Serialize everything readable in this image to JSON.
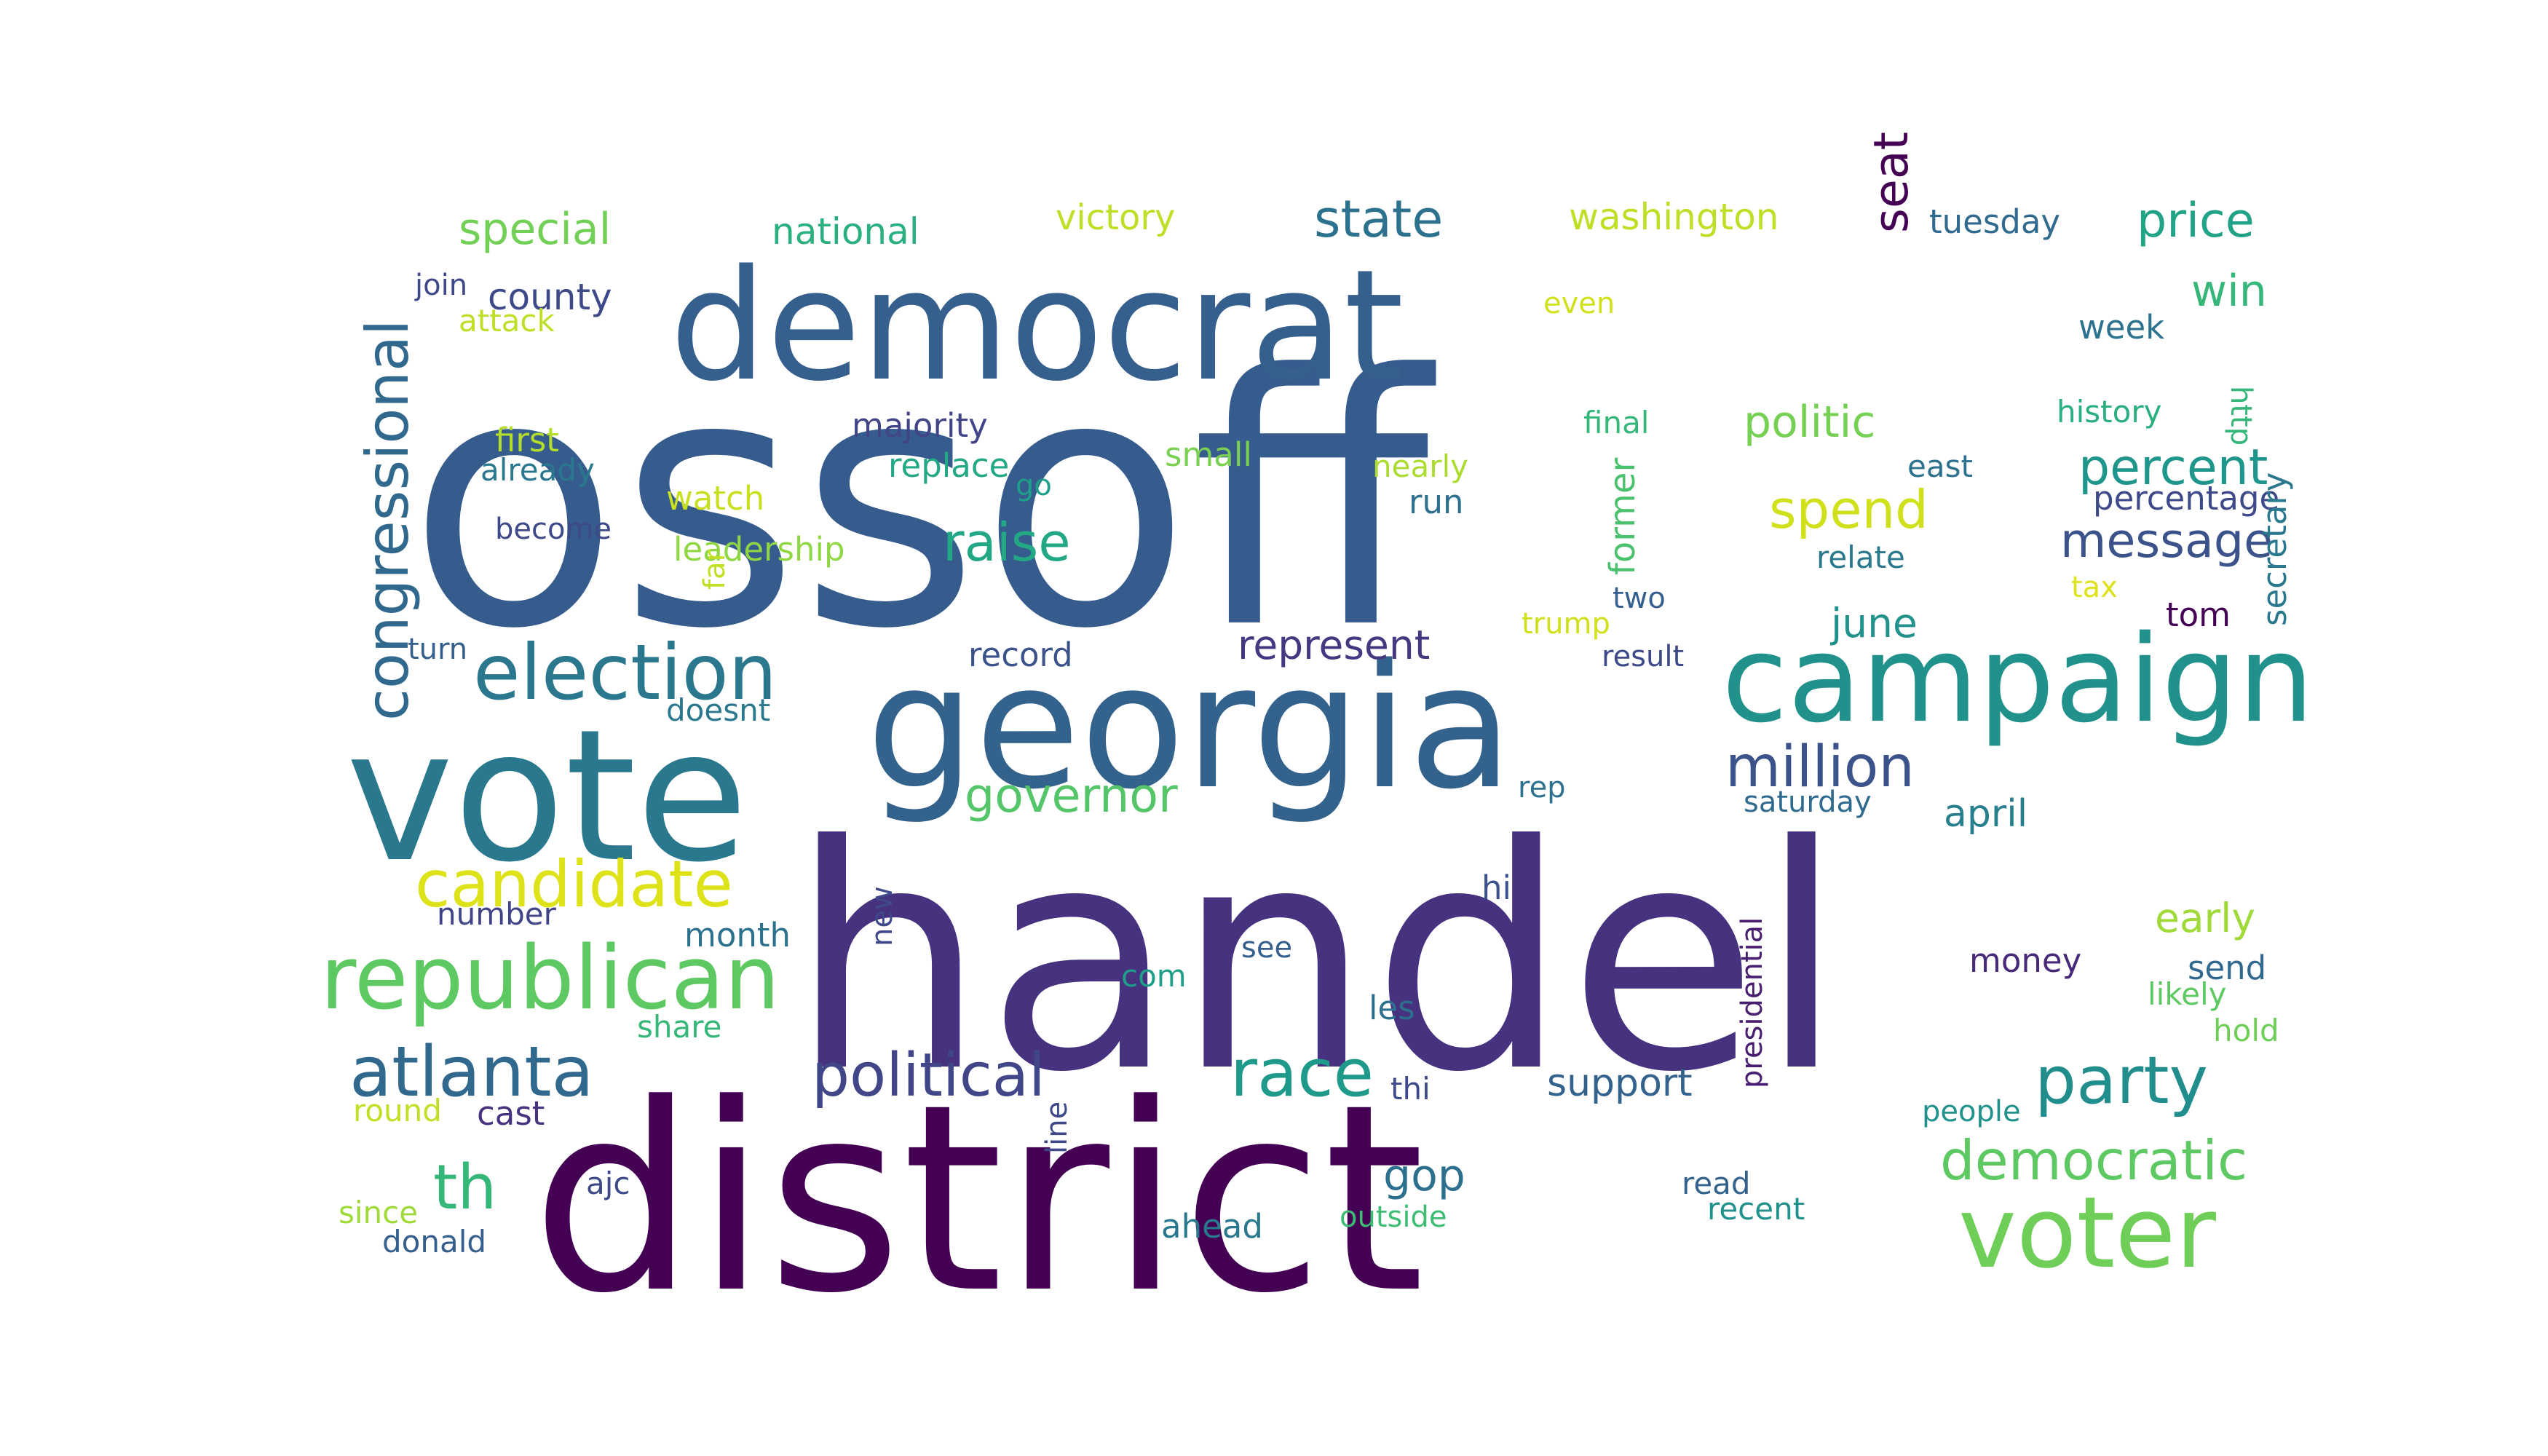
{
  "words": [
    {
      "text": "ossoff",
      "color": "#365c8d"
    },
    {
      "text": "handel",
      "color": "#46327e"
    },
    {
      "text": "district",
      "color": "#440154"
    },
    {
      "text": "georgia",
      "color": "#33638d"
    },
    {
      "text": "vote",
      "color": "#2a788e"
    },
    {
      "text": "democrat",
      "color": "#355f8d"
    },
    {
      "text": "campaign",
      "color": "#21918c"
    },
    {
      "text": "republican",
      "color": "#5ec962"
    },
    {
      "text": "voter",
      "color": "#6ece58"
    },
    {
      "text": "election",
      "color": "#2a778e"
    },
    {
      "text": "atlanta",
      "color": "#31688e"
    },
    {
      "text": "candidate",
      "color": "#dde318"
    },
    {
      "text": "party",
      "color": "#228d8d"
    },
    {
      "text": "political",
      "color": "#404688"
    },
    {
      "text": "race",
      "color": "#1f9a8a"
    },
    {
      "text": "million",
      "color": "#3b528b"
    },
    {
      "text": "congressional",
      "color": "#31688e"
    },
    {
      "text": "th",
      "color": "#35b779"
    },
    {
      "text": "democratic",
      "color": "#5ec962"
    },
    {
      "text": "raise",
      "color": "#22a884"
    },
    {
      "text": "state",
      "color": "#2c728e"
    },
    {
      "text": "special",
      "color": "#73d056"
    },
    {
      "text": "spend",
      "color": "#d0e11c"
    },
    {
      "text": "percent",
      "color": "#1f968b"
    },
    {
      "text": "message",
      "color": "#3b528b"
    },
    {
      "text": "governor",
      "color": "#54c568"
    },
    {
      "text": "seat",
      "color": "#440154"
    },
    {
      "text": "price",
      "color": "#20a386"
    },
    {
      "text": "politic",
      "color": "#75d054"
    },
    {
      "text": "win",
      "color": "#35b779"
    },
    {
      "text": "represent",
      "color": "#453781"
    },
    {
      "text": "gop",
      "color": "#2d708e"
    },
    {
      "text": "support",
      "color": "#33638d"
    },
    {
      "text": "washington",
      "color": "#bddf26"
    },
    {
      "text": "national",
      "color": "#2ab07f"
    },
    {
      "text": "victory",
      "color": "#bddf26"
    },
    {
      "text": "county",
      "color": "#3e4989"
    },
    {
      "text": "june",
      "color": "#21918c"
    },
    {
      "text": "early",
      "color": "#a0da39"
    },
    {
      "text": "april",
      "color": "#277f8e"
    },
    {
      "text": "majority",
      "color": "#414487"
    },
    {
      "text": "tuesday",
      "color": "#306a8e"
    },
    {
      "text": "replace",
      "color": "#22a884"
    },
    {
      "text": "small",
      "color": "#7ad151"
    },
    {
      "text": "nearly",
      "color": "#addc30"
    },
    {
      "text": "run",
      "color": "#2d708e"
    },
    {
      "text": "former",
      "color": "#4ac16d"
    },
    {
      "text": "record",
      "color": "#3b528b"
    },
    {
      "text": "week",
      "color": "#2c728e"
    },
    {
      "text": "history",
      "color": "#2ab07f"
    },
    {
      "text": "final",
      "color": "#35b779"
    },
    {
      "text": "east",
      "color": "#2c728e"
    },
    {
      "text": "percentage",
      "color": "#3e4989"
    },
    {
      "text": "relate",
      "color": "#2a788e"
    },
    {
      "text": "leadership",
      "color": "#8fd744"
    },
    {
      "text": "watch",
      "color": "#c8e020"
    },
    {
      "text": "first",
      "color": "#b5de2b"
    },
    {
      "text": "already",
      "color": "#2a788e"
    },
    {
      "text": "become",
      "color": "#3e4989"
    },
    {
      "text": "join",
      "color": "#3e4989"
    },
    {
      "text": "attack",
      "color": "#bddf26"
    },
    {
      "text": "even",
      "color": "#d0e11c"
    },
    {
      "text": "http",
      "color": "#35b779"
    },
    {
      "text": "go",
      "color": "#1f9e89"
    },
    {
      "text": "far",
      "color": "#c2df23"
    },
    {
      "text": "tax",
      "color": "#dde318"
    },
    {
      "text": "tom",
      "color": "#440154"
    },
    {
      "text": "trump",
      "color": "#d0e11c"
    },
    {
      "text": "two",
      "color": "#355f8d"
    },
    {
      "text": "turn",
      "color": "#355f8d"
    },
    {
      "text": "result",
      "color": "#3e4989"
    },
    {
      "text": "secretary",
      "color": "#2a788e"
    },
    {
      "text": "doesnt",
      "color": "#2a788e"
    },
    {
      "text": "saturday",
      "color": "#306a8e"
    },
    {
      "text": "rep",
      "color": "#2c728e"
    },
    {
      "text": "hi",
      "color": "#3b528b"
    },
    {
      "text": "presidential",
      "color": "#481f70"
    },
    {
      "text": "number",
      "color": "#414487"
    },
    {
      "text": "month",
      "color": "#2c728e"
    },
    {
      "text": "new",
      "color": "#3e4989"
    },
    {
      "text": "see",
      "color": "#355f8d"
    },
    {
      "text": "money",
      "color": "#482878"
    },
    {
      "text": "send",
      "color": "#31688e"
    },
    {
      "text": "likely",
      "color": "#5ec962"
    },
    {
      "text": "com",
      "color": "#1f9e89"
    },
    {
      "text": "les",
      "color": "#2d708e"
    },
    {
      "text": "share",
      "color": "#35b779"
    },
    {
      "text": "hold",
      "color": "#6ece58"
    },
    {
      "text": "thi",
      "color": "#3e4989"
    },
    {
      "text": "round",
      "color": "#c2df23"
    },
    {
      "text": "cast",
      "color": "#46327e"
    },
    {
      "text": "people",
      "color": "#21918c"
    },
    {
      "text": "line",
      "color": "#3e4989"
    },
    {
      "text": "ajc",
      "color": "#3e4989"
    },
    {
      "text": "read",
      "color": "#33638d"
    },
    {
      "text": "since",
      "color": "#a0da39"
    },
    {
      "text": "recent",
      "color": "#21918c"
    },
    {
      "text": "ahead",
      "color": "#2a788e"
    },
    {
      "text": "outside",
      "color": "#3fbc73"
    },
    {
      "text": "donald",
      "color": "#355f8d"
    }
  ]
}
